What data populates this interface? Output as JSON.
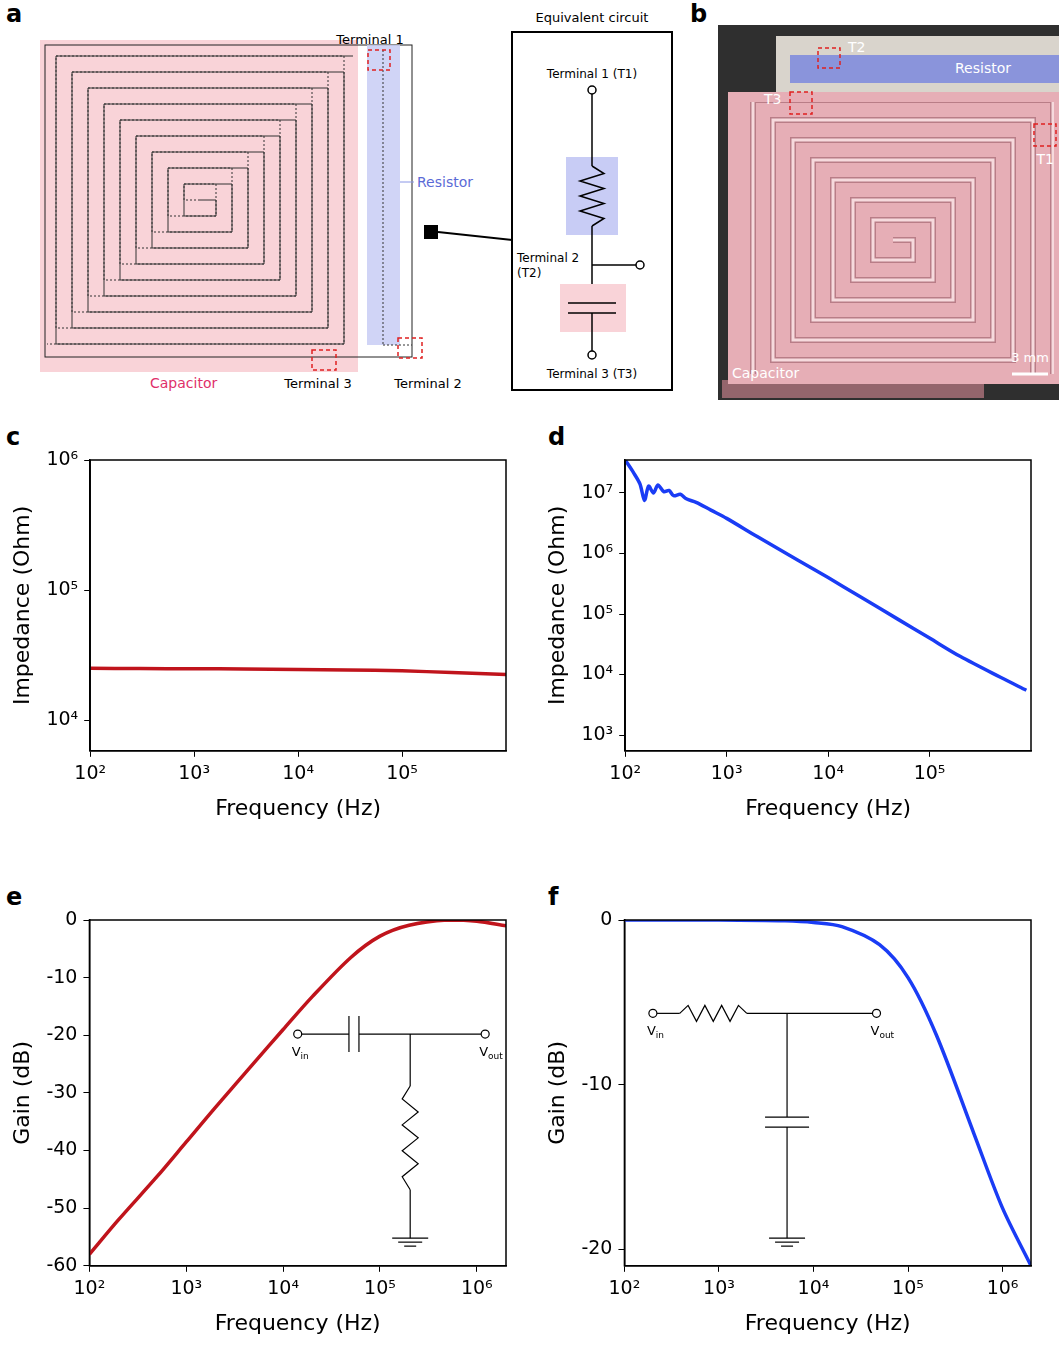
{
  "panel_letters": [
    "a",
    "b",
    "c",
    "d",
    "e",
    "f"
  ],
  "diagram": {
    "labels": {
      "terminal_1": "Terminal 1",
      "resistor": "Resistor",
      "capacitor": "Capacitor",
      "terminal_3": "Terminal 3",
      "terminal_2": "Terminal 2"
    },
    "equivalent_circuit": {
      "title": "Equivalent circuit",
      "terminal_1": "Terminal 1 (T1)",
      "terminal_2": [
        "Terminal 2",
        "(T2)"
      ],
      "terminal_3": "Terminal 3 (T3)"
    }
  },
  "photo": {
    "labels": {
      "t1": "T1",
      "t2": "T2",
      "t3": "T3",
      "resistor": "Resistor",
      "capacitor": "Capacitor",
      "scale_bar": "3 mm"
    }
  },
  "chart_data": [
    {
      "type": "line",
      "xlabel": "Frequency (Hz)",
      "ylabel": "Impedance (Ohm)",
      "log": true,
      "grid": false,
      "x": [
        100,
        300,
        1000,
        3000,
        10000,
        30000,
        100000,
        300000,
        1000000
      ],
      "series": [
        {
          "color": "#c0141c",
          "values": [
            25000,
            24900,
            24800,
            24700,
            24500,
            24300,
            23900,
            23200,
            22400
          ]
        }
      ],
      "xlim": [
        100,
        1000000
      ],
      "xticks": [
        {
          "value": 100,
          "label": "10²"
        },
        {
          "value": 1000,
          "label": "10³"
        },
        {
          "value": 10000,
          "label": "10⁴"
        },
        {
          "value": 100000,
          "label": "10⁵"
        }
      ],
      "ylim": [
        5800,
        1000000
      ],
      "yticks": [
        {
          "value": 10000,
          "label": "10⁴"
        },
        {
          "value": 100000,
          "label": "10⁵"
        },
        {
          "value": 1000000,
          "label": "10⁶"
        }
      ]
    },
    {
      "type": "line",
      "xlabel": "Frequency (Hz)",
      "ylabel": "Impedance (Ohm)",
      "log": true,
      "grid": false,
      "x": [
        100,
        120,
        140,
        155,
        170,
        190,
        210,
        240,
        270,
        300,
        350,
        400,
        500,
        700,
        1000,
        2000,
        5000,
        10000,
        20000,
        50000,
        100000,
        200000,
        500000,
        900000
      ],
      "series": [
        {
          "color": "#1a3cf5",
          "values": [
            35000000,
            22000000,
            14000000,
            7500000,
            13000000,
            10000000,
            13500000,
            10500000,
            11000000,
            9000000,
            9500000,
            8000000,
            7000000,
            5200000,
            3800000,
            1900000,
            780000,
            400000,
            200000,
            80000,
            40000,
            20000,
            9000,
            5500
          ]
        }
      ],
      "xlim": [
        100,
        1000000
      ],
      "xticks": [
        {
          "value": 100,
          "label": "10²"
        },
        {
          "value": 1000,
          "label": "10³"
        },
        {
          "value": 10000,
          "label": "10⁴"
        },
        {
          "value": 100000,
          "label": "10⁵"
        }
      ],
      "ylim": [
        550,
        35000000
      ],
      "yticks": [
        {
          "value": 1000,
          "label": "10³"
        },
        {
          "value": 10000,
          "label": "10⁴"
        },
        {
          "value": 100000,
          "label": "10⁵"
        },
        {
          "value": 1000000,
          "label": "10⁶"
        },
        {
          "value": 10000000,
          "label": "10⁷"
        }
      ]
    },
    {
      "type": "line",
      "xlabel": "Frequency (Hz)",
      "ylabel": "Gain (dB)",
      "log": "x",
      "grid": false,
      "annotations": [
        {
          "text": "V",
          "sub": "in"
        },
        {
          "text": "V",
          "sub": "out"
        }
      ],
      "x": [
        100,
        200,
        500,
        1000,
        2000,
        5000,
        10000,
        20000,
        50000,
        100000,
        200000,
        500000,
        1000000,
        2000000
      ],
      "series": [
        {
          "color": "#c0141c",
          "values": [
            -58,
            -52,
            -44.5,
            -38.5,
            -32.5,
            -24.8,
            -19,
            -13.3,
            -6.5,
            -2.8,
            -0.9,
            0,
            -0.2,
            -1
          ]
        }
      ],
      "xlim": [
        100,
        2000000
      ],
      "xticks": [
        {
          "value": 100,
          "label": "10²"
        },
        {
          "value": 1000,
          "label": "10³"
        },
        {
          "value": 10000,
          "label": "10⁴"
        },
        {
          "value": 100000,
          "label": "10⁵"
        },
        {
          "value": 1000000,
          "label": "10⁶"
        }
      ],
      "ylim": [
        -60,
        0
      ],
      "yticks": [
        -60,
        -50,
        -40,
        -30,
        -20,
        -10,
        0
      ]
    },
    {
      "type": "line",
      "xlabel": "Frequency (Hz)",
      "ylabel": "Gain (dB)",
      "log": "x",
      "grid": false,
      "annotations": [
        {
          "text": "V",
          "sub": "in"
        },
        {
          "text": "V",
          "sub": "out"
        }
      ],
      "x": [
        100,
        1000,
        5000,
        10000,
        20000,
        50000,
        100000,
        200000,
        500000,
        1000000,
        2000000
      ],
      "series": [
        {
          "color": "#1a3cf5",
          "values": [
            0,
            0,
            -0.05,
            -0.15,
            -0.4,
            -1.5,
            -3.5,
            -7,
            -13,
            -17.5,
            -21
          ]
        }
      ],
      "xlim": [
        100,
        2000000
      ],
      "xticks": [
        {
          "value": 100,
          "label": "10²"
        },
        {
          "value": 1000,
          "label": "10³"
        },
        {
          "value": 10000,
          "label": "10⁴"
        },
        {
          "value": 100000,
          "label": "10⁵"
        },
        {
          "value": 1000000,
          "label": "10⁶"
        }
      ],
      "ylim": [
        -21,
        0
      ],
      "yticks": [
        -20,
        -10,
        0
      ]
    }
  ]
}
